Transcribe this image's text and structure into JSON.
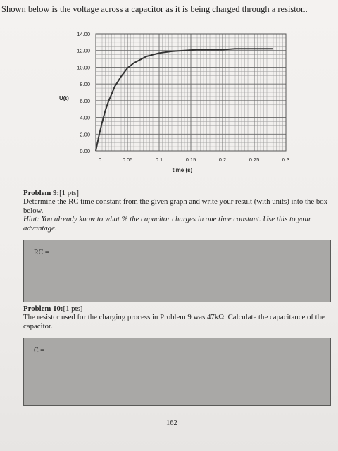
{
  "intro": "Shown below is the voltage across a capacitor as it is being charged through a resistor..",
  "chart_data": {
    "type": "line",
    "xlabel": "time (s)",
    "ylabel": "U(t)",
    "x_ticks": [
      "0",
      "0.05",
      "0.1",
      "0.15",
      "0.2",
      "0.25",
      "0.3"
    ],
    "y_ticks": [
      "0.00",
      "2.00",
      "4.00",
      "6.00",
      "8.00",
      "10.00",
      "12.00",
      "14.00"
    ],
    "xlim": [
      0,
      0.3
    ],
    "ylim": [
      0,
      14
    ],
    "grid": true,
    "series": [
      {
        "x": [
          0,
          0.005,
          0.01,
          0.015,
          0.02,
          0.03,
          0.04,
          0.05,
          0.06,
          0.07,
          0.08,
          0.09,
          0.1,
          0.12,
          0.14,
          0.16,
          0.18,
          0.2,
          0.22,
          0.24,
          0.26,
          0.28
        ],
        "y": [
          0,
          1.8,
          3.4,
          4.8,
          5.9,
          7.7,
          8.9,
          9.9,
          10.5,
          10.9,
          11.3,
          11.5,
          11.7,
          11.9,
          12.0,
          12.1,
          12.1,
          12.1,
          12.2,
          12.2,
          12.2,
          12.2
        ]
      }
    ]
  },
  "problem9": {
    "title": "Problem 9:",
    "pts": "[1 pts]",
    "text": "Determine the RC time constant from the given graph and write your result (with units) into the box below.",
    "hint": "Hint: You already know to what % the capacitor charges in one time constant. Use this to your advantage.",
    "box_label": "RC ="
  },
  "problem10": {
    "title": "Problem 10:",
    "pts": "[1 pts]",
    "text": "The resistor used for the charging process in Problem 9 was 47kΩ. Calculate the capacitance of the capacitor.",
    "box_label": "C ="
  },
  "page_number": "162"
}
